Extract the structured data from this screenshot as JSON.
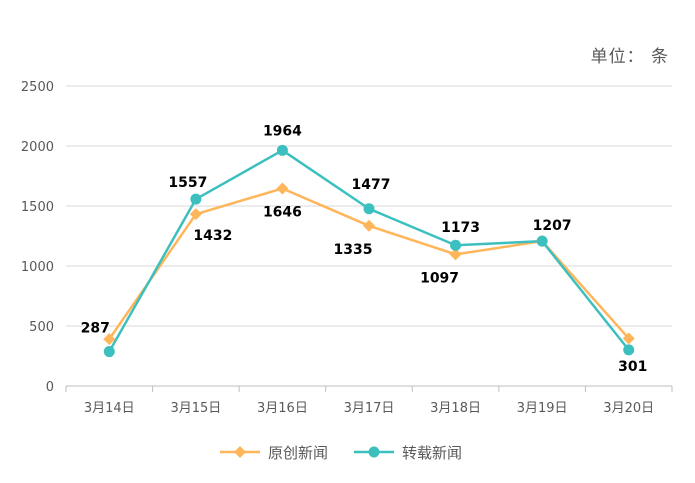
{
  "unit_label": "单位： 条",
  "chart_data": {
    "type": "line",
    "categories": [
      "3月14日",
      "3月15日",
      "3月16日",
      "3月17日",
      "3月18日",
      "3月19日",
      "3月20日"
    ],
    "series": [
      {
        "name": "原创新闻",
        "color": "#FFB55A",
        "marker": "diamond",
        "values": [
          391,
          1432,
          1646,
          1335,
          1097,
          1207,
          396
        ],
        "labels": [
          "",
          "1432",
          "1646",
          "1335",
          "1097",
          "",
          ""
        ]
      },
      {
        "name": "转载新闻",
        "color": "#3CBFBF",
        "marker": "circle",
        "values": [
          287,
          1557,
          1964,
          1477,
          1173,
          1207,
          301
        ],
        "labels": [
          "287",
          "1557",
          "1964",
          "1477",
          "1173",
          "1207",
          "301"
        ]
      }
    ],
    "ylim": [
      0,
      2500
    ],
    "yticks": [
      0,
      500,
      1000,
      1500,
      2000,
      2500
    ],
    "grid": true,
    "legend_position": "bottom"
  }
}
